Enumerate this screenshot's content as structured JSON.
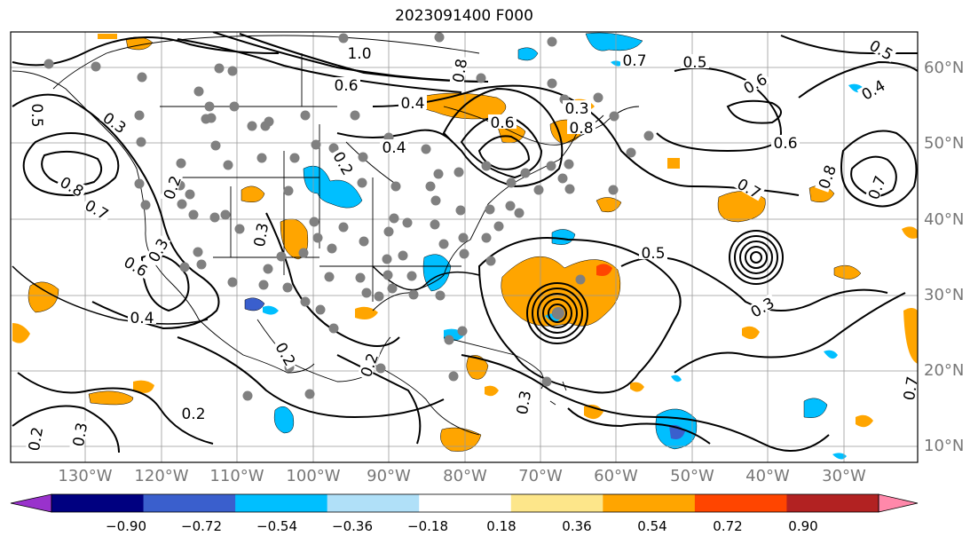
{
  "title": "2023091400 F000",
  "map": {
    "lat_labels": [
      "60°N",
      "50°N",
      "40°N",
      "30°N",
      "20°N",
      "10°N"
    ],
    "lon_labels": [
      "130°W",
      "120°W",
      "110°W",
      "100°W",
      "90°W",
      "80°W",
      "70°W",
      "60°W",
      "50°W",
      "40°W",
      "30°W"
    ],
    "contour_labels": [
      "0.5",
      "0.3",
      "0.8",
      "0.7",
      "0.2",
      "0.3",
      "0.6",
      "0.4",
      "0.2",
      "0.3",
      "0.2",
      "0.3",
      "1.0",
      "0.6",
      "0.8",
      "0.7",
      "0.5",
      "0.4",
      "0.6",
      "0.3",
      "0.8",
      "0.2",
      "0.4",
      "0.5",
      "0.6",
      "0.7",
      "0.8",
      "0.7",
      "0.6",
      "0.4",
      "0.3",
      "0.5",
      "0.2",
      "0.2",
      "0.3",
      "0.7"
    ]
  },
  "colorbar": {
    "ticks": [
      "−0.90",
      "−0.72",
      "−0.54",
      "−0.36",
      "−0.18",
      "0.18",
      "0.36",
      "0.54",
      "0.72",
      "0.90"
    ],
    "colors": [
      "#9932cc",
      "#000080",
      "#3a5fcd",
      "#00bfff",
      "#b0e0f8",
      "#ffffff",
      "#fde68a",
      "#ffa500",
      "#ff4500",
      "#b22222",
      "#ff88aa"
    ],
    "over_color": "#ff88aa",
    "under_color": "#9932cc"
  },
  "colors": {
    "shade_orange": "#ffa500",
    "shade_lightorange": "#fde68a",
    "shade_blue": "#00bfff",
    "shade_lightblue": "#b0e0f8",
    "shade_darkblue": "#3a5fcd",
    "shade_red": "#ff4500",
    "station_dot": "#808080"
  }
}
